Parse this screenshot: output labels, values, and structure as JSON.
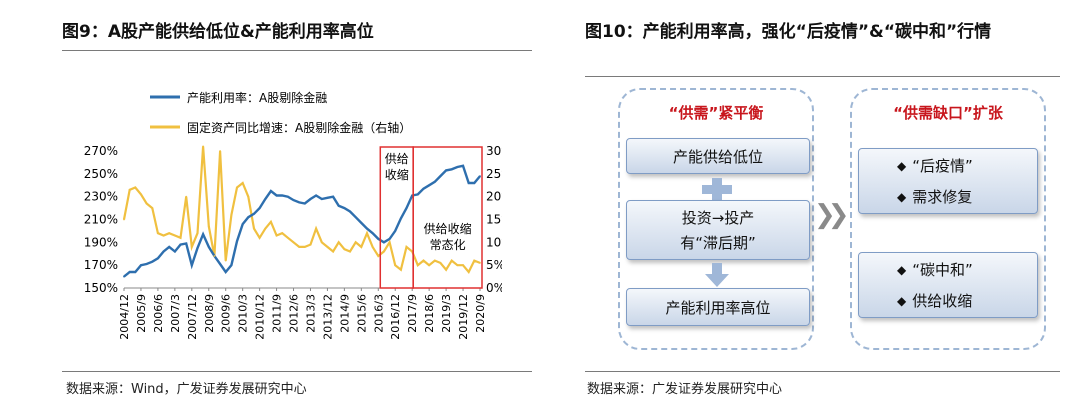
{
  "left_figure": {
    "title": "图9：A股产能供给低位&产能利用率高位",
    "source": "数据来源：Wind，广发证券发展研究中心",
    "chart_data": {
      "type": "line",
      "legend_position": "top-left",
      "series": [
        {
          "name": "产能利用率：A股剔除金融",
          "axis": "left",
          "color": "#2e6fae",
          "values": [
            1.6,
            1.64,
            1.64,
            1.7,
            1.71,
            1.73,
            1.76,
            1.82,
            1.86,
            1.82,
            1.88,
            1.89,
            1.7,
            1.85,
            1.97,
            1.86,
            1.78,
            1.71,
            1.64,
            1.7,
            1.91,
            2.06,
            2.12,
            2.15,
            2.2,
            2.28,
            2.35,
            2.31,
            2.31,
            2.3,
            2.27,
            2.25,
            2.24,
            2.28,
            2.31,
            2.28,
            2.29,
            2.3,
            2.22,
            2.2,
            2.17,
            2.12,
            2.07,
            2.02,
            1.98,
            1.93,
            1.9,
            1.93,
            2.0,
            2.11,
            2.2,
            2.31,
            2.32,
            2.37,
            2.4,
            2.43,
            2.48,
            2.53,
            2.54,
            2.56,
            2.57,
            2.42,
            2.42,
            2.48
          ]
        },
        {
          "name": "固定资产同比增速：A股剔除金融（右轴）",
          "axis": "right",
          "color": "#f0c040",
          "values": [
            0.15,
            0.215,
            0.22,
            0.205,
            0.185,
            0.175,
            0.12,
            0.115,
            0.12,
            0.115,
            0.11,
            0.2,
            0.09,
            0.12,
            0.31,
            0.135,
            0.07,
            0.3,
            0.06,
            0.16,
            0.22,
            0.23,
            0.2,
            0.13,
            0.11,
            0.13,
            0.145,
            0.115,
            0.12,
            0.11,
            0.1,
            0.09,
            0.09,
            0.095,
            0.13,
            0.1,
            0.09,
            0.08,
            0.1,
            0.085,
            0.08,
            0.1,
            0.09,
            0.12,
            0.09,
            0.07,
            0.08,
            0.1,
            0.05,
            0.04,
            0.09,
            0.08,
            0.05,
            0.06,
            0.05,
            0.06,
            0.055,
            0.04,
            0.06,
            0.05,
            0.05,
            0.035,
            0.06,
            0.055
          ]
        }
      ],
      "x_tick_labels": [
        "2004/12",
        "2005/9",
        "2006/6",
        "2007/3",
        "2007/12",
        "2008/9",
        "2009/6",
        "2010/3",
        "2010/12",
        "2011/9",
        "2012/6",
        "2013/3",
        "2013/12",
        "2014/9",
        "2015/6",
        "2016/3",
        "2016/12",
        "2017/9",
        "2018/6",
        "2019/3",
        "2019/12",
        "2020/9"
      ],
      "y_left_ticks": [
        "270%",
        "250%",
        "230%",
        "210%",
        "190%",
        "170%",
        "150%"
      ],
      "y_right_ticks": [
        "30%",
        "25%",
        "20%",
        "15%",
        "10%",
        "5%",
        "0%"
      ],
      "y_left_range": [
        1.5,
        2.7
      ],
      "y_right_range": [
        0,
        0.3
      ],
      "annotations": [
        {
          "label_lines": [
            "供给",
            "收缩"
          ],
          "border_color": "#e03030"
        },
        {
          "label_lines": [
            "供给收缩",
            "常态化"
          ],
          "border_color": "#e03030"
        }
      ]
    }
  },
  "right_figure": {
    "title": "图10：产能利用率高，强化“后疫情”&“碳中和”行情",
    "source": "数据来源：广发证券发展研究中心",
    "left_column": {
      "title": "“供需”紧平衡",
      "box1": "产能供给低位",
      "box2_line1": "投资→投产",
      "box2_line2": "有“滞后期”",
      "box3": "产能利用率高位"
    },
    "right_column": {
      "title": "“供需缺口”扩张",
      "box1_items": [
        "“后疫情”",
        "需求修复"
      ],
      "box2_items": [
        "“碳中和”",
        "供给收缩"
      ]
    },
    "bullet_symbol": "◆",
    "arrow_symbol": "❯❯",
    "accent_color": "#c8161d"
  }
}
